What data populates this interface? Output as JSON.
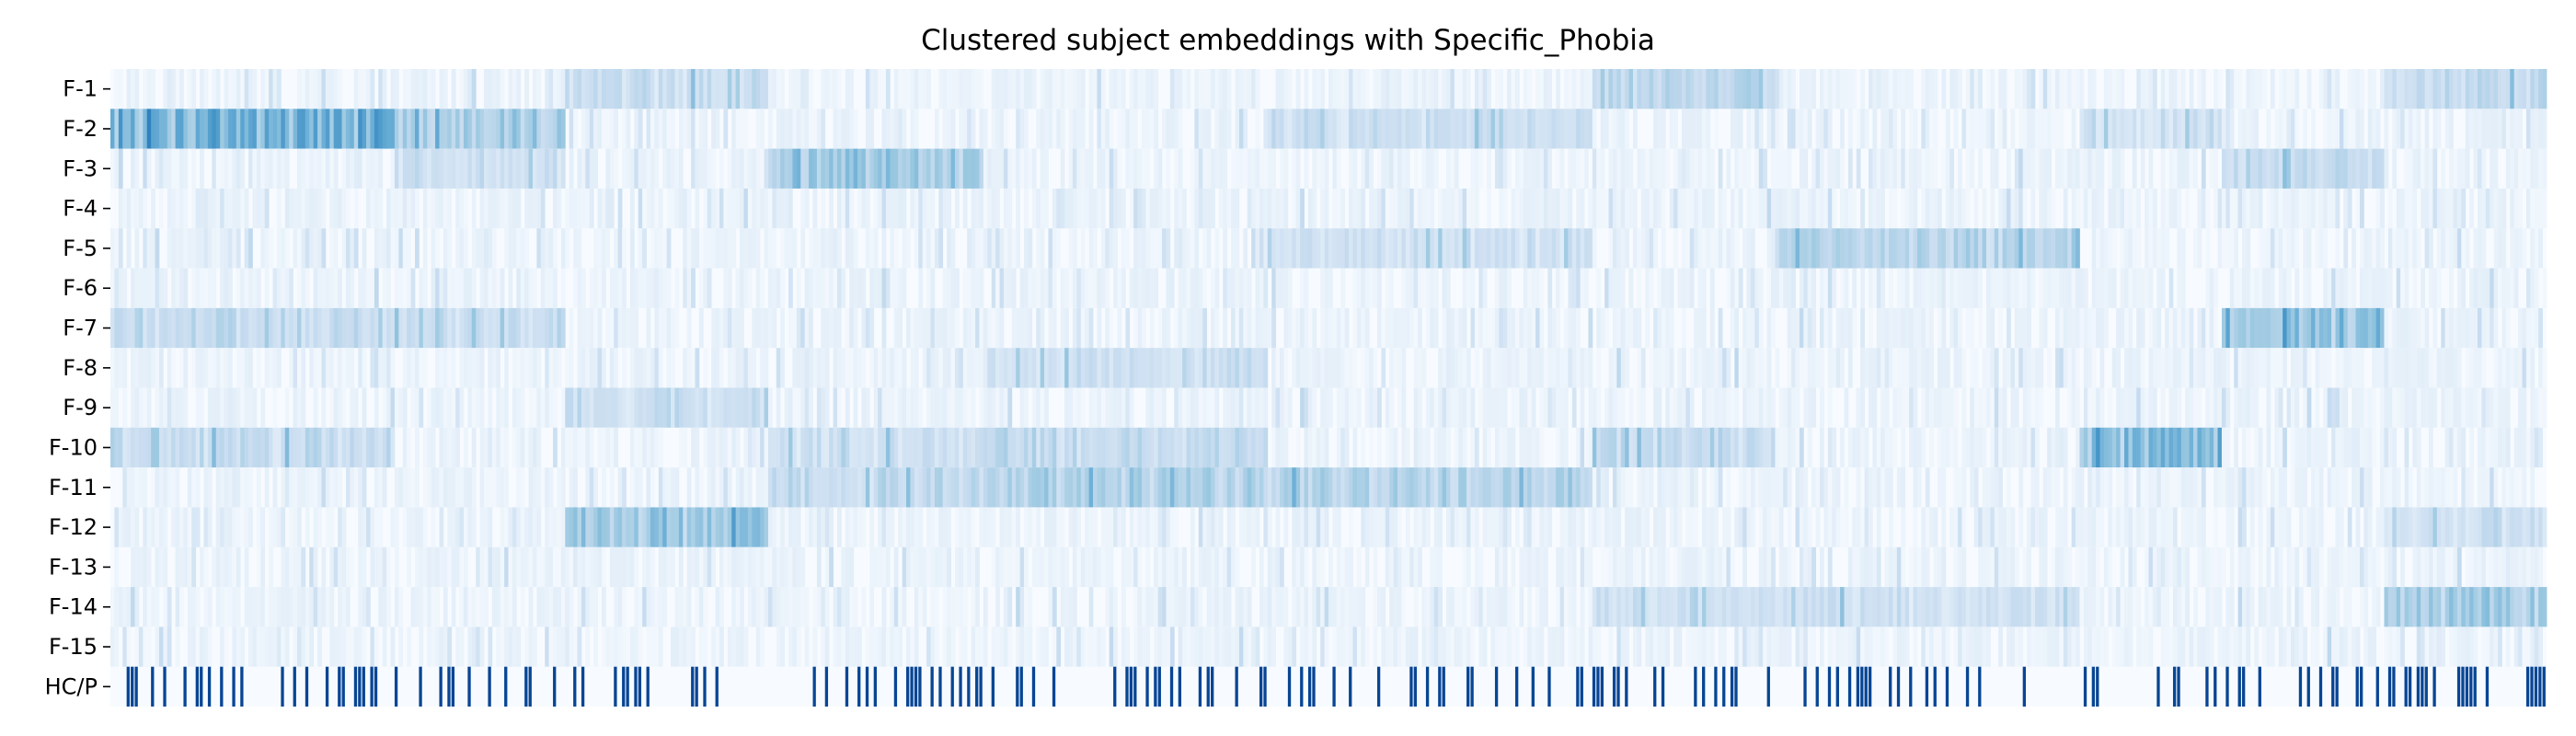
{
  "chart_data": {
    "type": "heatmap",
    "title": "Clustered subject embeddings with Specific_Phobia",
    "xlabel": "",
    "ylabel": "",
    "colormap": "Blues",
    "row_labels": [
      "F-1",
      "F-2",
      "F-3",
      "F-4",
      "F-5",
      "F-6",
      "F-7",
      "F-8",
      "F-9",
      "F-10",
      "F-11",
      "F-12",
      "F-13",
      "F-14",
      "F-15",
      "HC/P"
    ],
    "n_subjects": 600,
    "seed": 17,
    "grid": false,
    "clusters": [
      {
        "from": 0,
        "to": 70,
        "strong": {
          "F-2": 0.55,
          "F-7": 0.25,
          "F-10": 0.22
        }
      },
      {
        "from": 70,
        "to": 112,
        "strong": {
          "F-2": 0.35,
          "F-3": 0.2,
          "F-7": 0.22
        }
      },
      {
        "from": 112,
        "to": 162,
        "strong": {
          "F-12": 0.4,
          "F-9": 0.22,
          "F-1": 0.22
        }
      },
      {
        "from": 162,
        "to": 215,
        "strong": {
          "F-3": 0.4,
          "F-11": 0.25,
          "F-10": 0.2
        }
      },
      {
        "from": 215,
        "to": 285,
        "strong": {
          "F-11": 0.32,
          "F-10": 0.24,
          "F-8": 0.2
        }
      },
      {
        "from": 285,
        "to": 365,
        "strong": {
          "F-11": 0.3,
          "F-2": 0.2,
          "F-5": 0.18
        }
      },
      {
        "from": 365,
        "to": 410,
        "strong": {
          "F-10": 0.25,
          "F-1": 0.28,
          "F-14": 0.2
        }
      },
      {
        "from": 410,
        "to": 485,
        "strong": {
          "F-5": 0.32,
          "F-14": 0.18
        }
      },
      {
        "from": 485,
        "to": 520,
        "strong": {
          "F-10": 0.45,
          "F-2": 0.18
        }
      },
      {
        "from": 520,
        "to": 560,
        "strong": {
          "F-7": 0.4,
          "F-3": 0.22
        }
      },
      {
        "from": 560,
        "to": 600,
        "strong": {
          "F-14": 0.38,
          "F-1": 0.25,
          "F-12": 0.2
        }
      }
    ],
    "hcp_rate": 0.28
  }
}
